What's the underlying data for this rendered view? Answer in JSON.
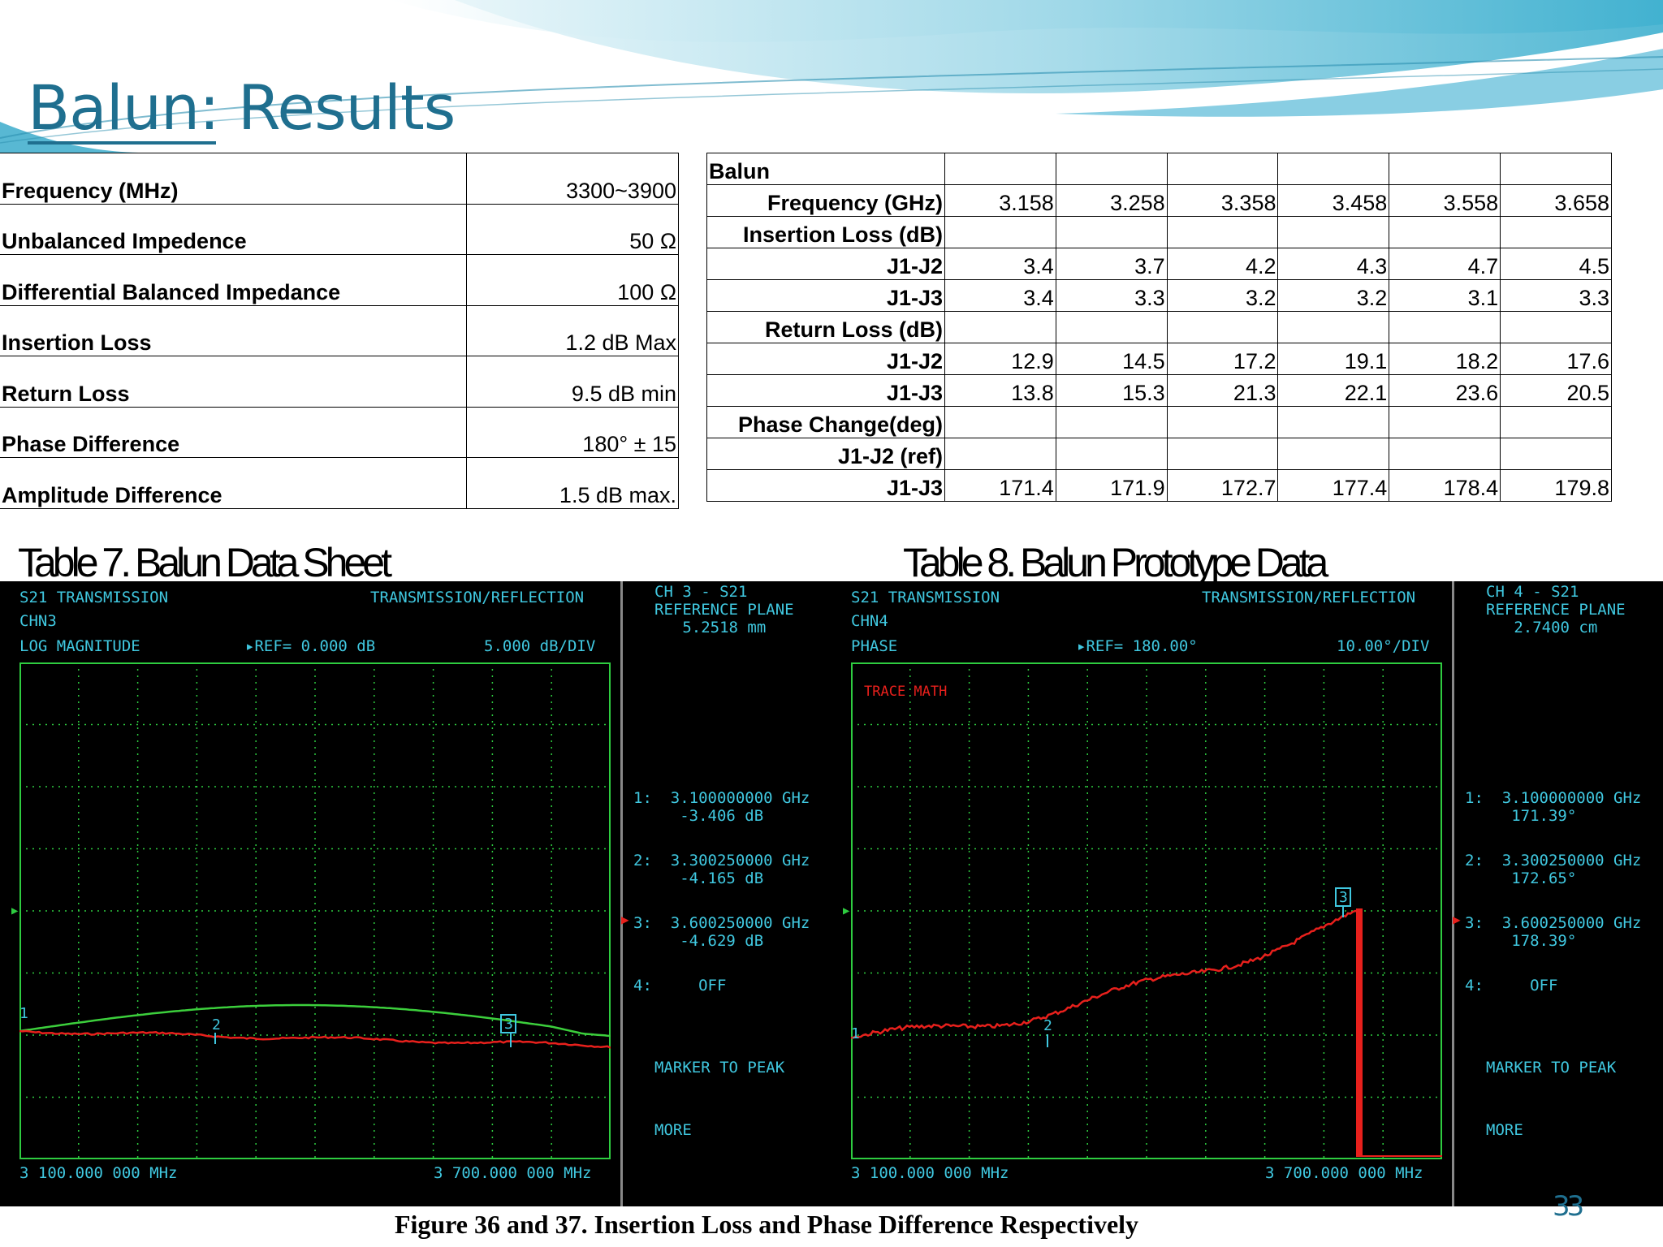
{
  "slide": {
    "title": "Balun: Results",
    "page_number": "33",
    "figure_caption": "Figure 36 and 37. Insertion Loss and Phase Difference Respectively"
  },
  "spec_table": {
    "caption": "Table 7. Balun Data Sheet",
    "rows": [
      {
        "label": "Frequency (MHz)",
        "value": "3300~3900"
      },
      {
        "label": "Unbalanced Impedence",
        "value": "50 Ω"
      },
      {
        "label": "Differential Balanced Impedance",
        "value": "100 Ω"
      },
      {
        "label": "Insertion Loss",
        "value": "1.2 dB Max"
      },
      {
        "label": "Return Loss",
        "value": "9.5 dB min"
      },
      {
        "label": "Phase Difference",
        "value": "180° ± 15"
      },
      {
        "label": "Amplitude Difference",
        "value": "1.5 dB max."
      }
    ]
  },
  "proto_table": {
    "caption": "Table 8. Balun Prototype Data",
    "rows": [
      {
        "label": "Balun",
        "values": [
          "",
          "",
          "",
          "",
          "",
          ""
        ]
      },
      {
        "label": "Frequency (GHz)",
        "values": [
          "3.158",
          "3.258",
          "3.358",
          "3.458",
          "3.558",
          "3.658"
        ]
      },
      {
        "label": "Insertion Loss (dB)",
        "values": [
          "",
          "",
          "",
          "",
          "",
          ""
        ]
      },
      {
        "label": "J1-J2",
        "values": [
          "3.4",
          "3.7",
          "4.2",
          "4.3",
          "4.7",
          "4.5"
        ]
      },
      {
        "label": "J1-J3",
        "values": [
          "3.4",
          "3.3",
          "3.2",
          "3.2",
          "3.1",
          "3.3"
        ]
      },
      {
        "label": "Return Loss (dB)",
        "values": [
          "",
          "",
          "",
          "",
          "",
          ""
        ]
      },
      {
        "label": "J1-J2",
        "values": [
          "12.9",
          "14.5",
          "17.2",
          "19.1",
          "18.2",
          "17.6"
        ]
      },
      {
        "label": "J1-J3",
        "values": [
          "13.8",
          "15.3",
          "21.3",
          "22.1",
          "23.6",
          "20.5"
        ]
      },
      {
        "label": "Phase Change(deg)",
        "values": [
          "",
          "",
          "",
          "",
          "",
          ""
        ]
      },
      {
        "label": "J1-J2 (ref)",
        "values": [
          "",
          "",
          "",
          "",
          "",
          ""
        ]
      },
      {
        "label": "J1-J3",
        "values": [
          "171.4",
          "171.9",
          "172.7",
          "177.4",
          "178.4",
          "179.8"
        ]
      }
    ]
  },
  "scope1": {
    "header_left_1": "S21 TRANSMISSION",
    "header_left_2": "CHN3",
    "header_right": "TRANSMISSION/REFLECTION",
    "format": "LOG MAGNITUDE",
    "ref": "▸REF= 0.000 dB",
    "scale": "5.000 dB/DIV",
    "start": "3 100.000 000 MHz",
    "stop": "3 700.000 000 MHz",
    "side": {
      "ch": "CH 3 - S21",
      "ref_plane_label": "REFERENCE PLANE",
      "ref_plane_value": "5.2518 mm",
      "m1_freq": "1:  3.100000000 GHz",
      "m1_val": "-3.406 dB",
      "m2_freq": "2:  3.300250000 GHz",
      "m2_val": "-4.165 dB",
      "m3_freq": "3:  3.600250000 GHz",
      "m3_val": "-4.629 dB",
      "m4": "4:     OFF",
      "peak": "MARKER TO PEAK",
      "more": "MORE"
    },
    "marker_labels": [
      "1",
      "2",
      "3"
    ]
  },
  "scope2": {
    "header_left_1": "S21 TRANSMISSION",
    "header_left_2": "CHN4",
    "header_right": "TRANSMISSION/REFLECTION",
    "format": "PHASE",
    "ref": "▸REF= 180.00°",
    "scale": "10.00°/DIV",
    "trace_math": "TRACE MATH",
    "start": "3 100.000 000 MHz",
    "stop": "3 700.000 000 MHz",
    "side": {
      "ch": "CH 4 - S21",
      "ref_plane_label": "REFERENCE PLANE",
      "ref_plane_value": "2.7400 cm",
      "m1_freq": "1:  3.100000000 GHz",
      "m1_val": "171.39°",
      "m2_freq": "2:  3.300250000 GHz",
      "m2_val": "172.65°",
      "m3_freq": "3:  3.600250000 GHz",
      "m3_val": "178.39°",
      "m4": "4:     OFF",
      "peak": "MARKER TO PEAK",
      "more": "MORE"
    },
    "marker_labels": [
      "1",
      "2",
      "3"
    ]
  },
  "colors": {
    "title": "#1f6f8f",
    "grid": "#2ecc40",
    "scope_text": "#40c8e0",
    "trace_red": "#e8201c",
    "trace_green": "#3ccf3c"
  }
}
